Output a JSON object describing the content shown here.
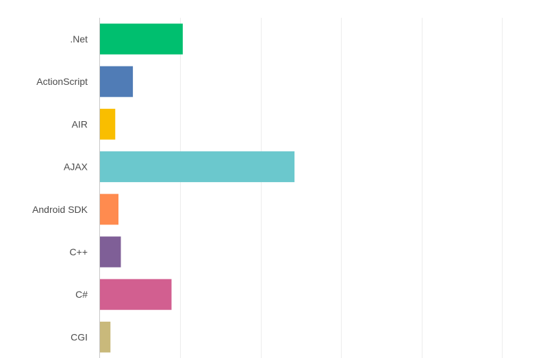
{
  "chart_data": {
    "type": "bar",
    "orientation": "horizontal",
    "title": "",
    "xlabel": "",
    "ylabel": "",
    "categories": [
      ".Net",
      "ActionScript",
      "AIR",
      "AJAX",
      "Android SDK",
      "C++",
      "C#",
      "CGI"
    ],
    "values": [
      10.3,
      4.1,
      1.9,
      24.2,
      2.3,
      2.6,
      8.9,
      1.3
    ],
    "colors": [
      "#00bf6f",
      "#507cb6",
      "#f9be00",
      "#6bc8cd",
      "#ff8b4f",
      "#7f5f97",
      "#d25f90",
      "#c9b97b"
    ],
    "xlim": [
      0,
      50
    ],
    "grid": true,
    "legend": "none"
  }
}
